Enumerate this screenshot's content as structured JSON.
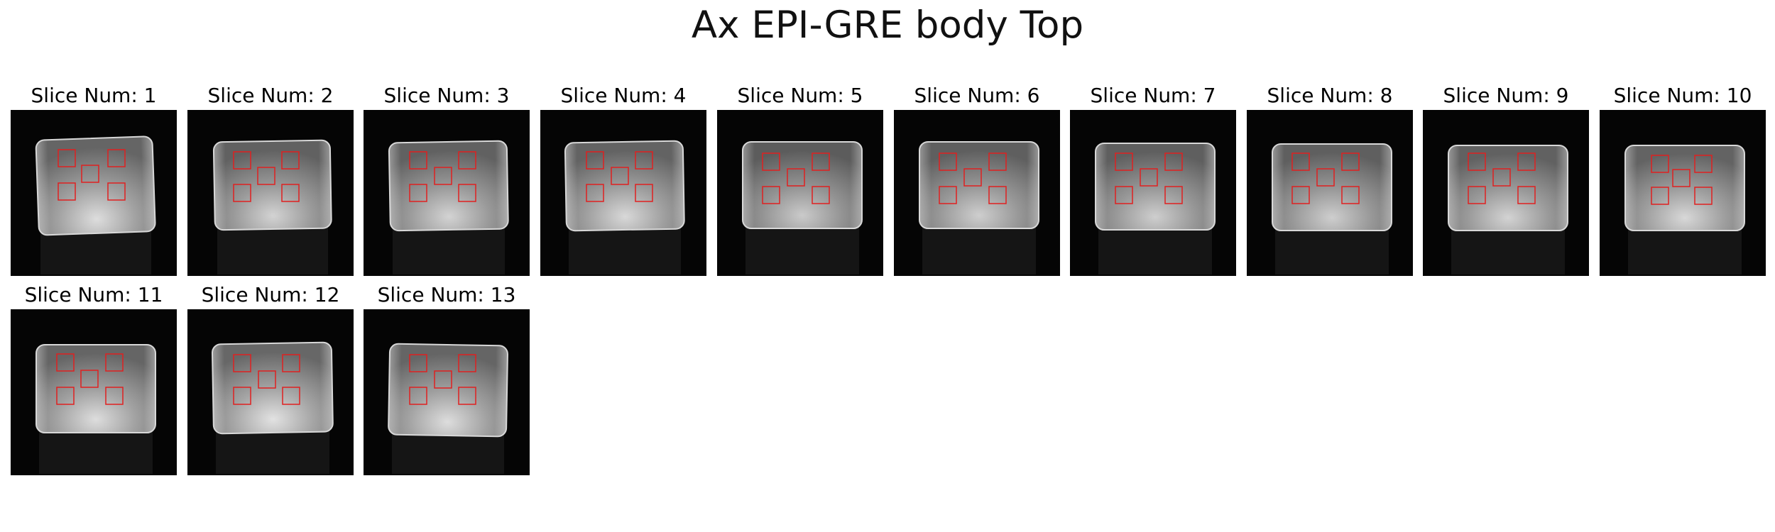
{
  "figure": {
    "title": "Ax EPI-GRE body Top",
    "roi_color": "#e02020",
    "rois_per_slice": 5,
    "slices": [
      {
        "label": "Slice Num: 1"
      },
      {
        "label": "Slice Num: 2"
      },
      {
        "label": "Slice Num: 3"
      },
      {
        "label": "Slice Num: 4"
      },
      {
        "label": "Slice Num: 5"
      },
      {
        "label": "Slice Num: 6"
      },
      {
        "label": "Slice Num: 7"
      },
      {
        "label": "Slice Num: 8"
      },
      {
        "label": "Slice Num: 9"
      },
      {
        "label": "Slice Num: 10"
      },
      {
        "label": "Slice Num: 11"
      },
      {
        "label": "Slice Num: 12"
      },
      {
        "label": "Slice Num: 13"
      }
    ]
  }
}
